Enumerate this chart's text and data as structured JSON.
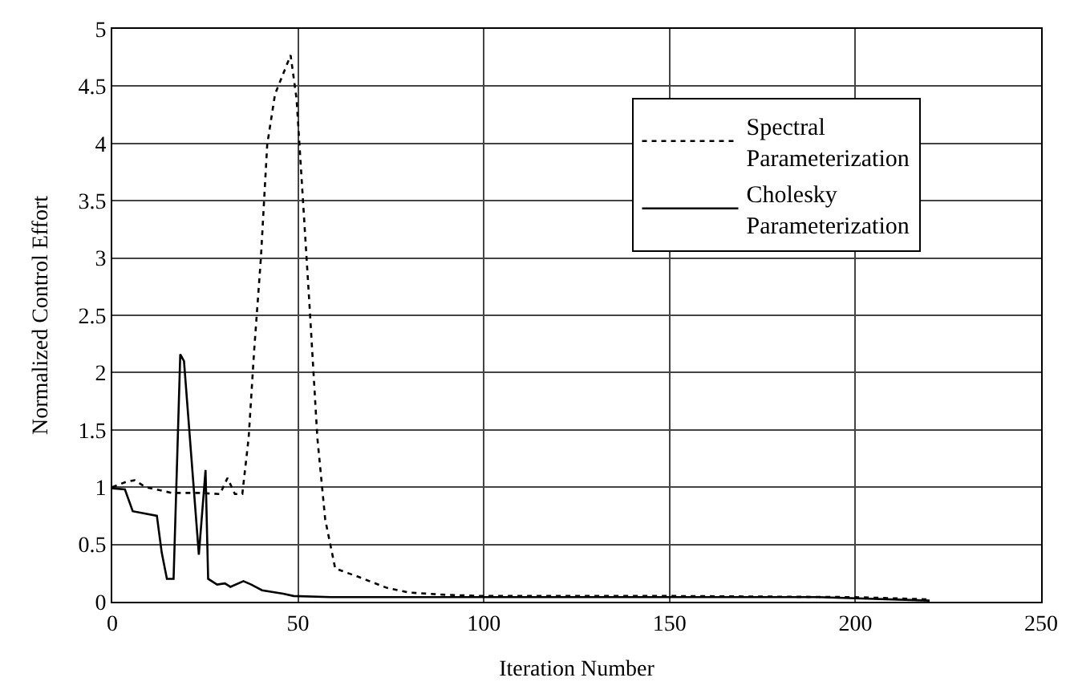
{
  "chart_data": {
    "type": "line",
    "xlabel": "Iteration Number",
    "ylabel": "Normalized Control Effort",
    "xlim": [
      0,
      250
    ],
    "xticks": [
      0,
      50,
      100,
      150,
      200,
      250
    ],
    "ylim": [
      0,
      5
    ],
    "yticks": [
      0,
      0.5,
      1,
      1.5,
      2,
      2.5,
      3,
      3.5,
      4,
      4.5,
      5
    ],
    "grid": true,
    "legend": "top right",
    "marker": "none",
    "series": [
      {
        "name": "Spectral Parameterization",
        "color": "#000000",
        "line_style": "dotted",
        "x": [
          0,
          4,
          6,
          9,
          16,
          23,
          29,
          31,
          33,
          35,
          36.7,
          38.2,
          40,
          41.7,
          43.8,
          45.9,
          48,
          49.6,
          51,
          53.1,
          55.2,
          57.3,
          60,
          66,
          74,
          80,
          90,
          100,
          150,
          200,
          220
        ],
        "values": [
          1.0,
          1.05,
          1.06,
          1.0,
          0.95,
          0.95,
          0.94,
          1.08,
          0.94,
          0.94,
          1.43,
          2.2,
          3.0,
          3.99,
          4.43,
          4.6,
          4.77,
          4.39,
          3.67,
          2.58,
          1.43,
          0.72,
          0.29,
          0.22,
          0.12,
          0.08,
          0.06,
          0.05,
          0.05,
          0.04,
          0.02
        ]
      },
      {
        "name": "Cholesky Parameterization",
        "color": "#000000",
        "line_style": "solid",
        "x": [
          0,
          3.4,
          5.5,
          12,
          13.3,
          14.7,
          16.5,
          18.3,
          19.3,
          23.3,
          25.1,
          25.8,
          28.2,
          30.3,
          31.8,
          35.3,
          37.4,
          40.3,
          46,
          48.8,
          58.7,
          80,
          100,
          150,
          190,
          220
        ],
        "values": [
          0.99,
          0.98,
          0.79,
          0.75,
          0.43,
          0.2,
          0.2,
          2.16,
          2.1,
          0.41,
          1.15,
          0.2,
          0.15,
          0.16,
          0.13,
          0.18,
          0.15,
          0.1,
          0.07,
          0.05,
          0.04,
          0.04,
          0.04,
          0.04,
          0.04,
          0.01
        ]
      }
    ]
  }
}
